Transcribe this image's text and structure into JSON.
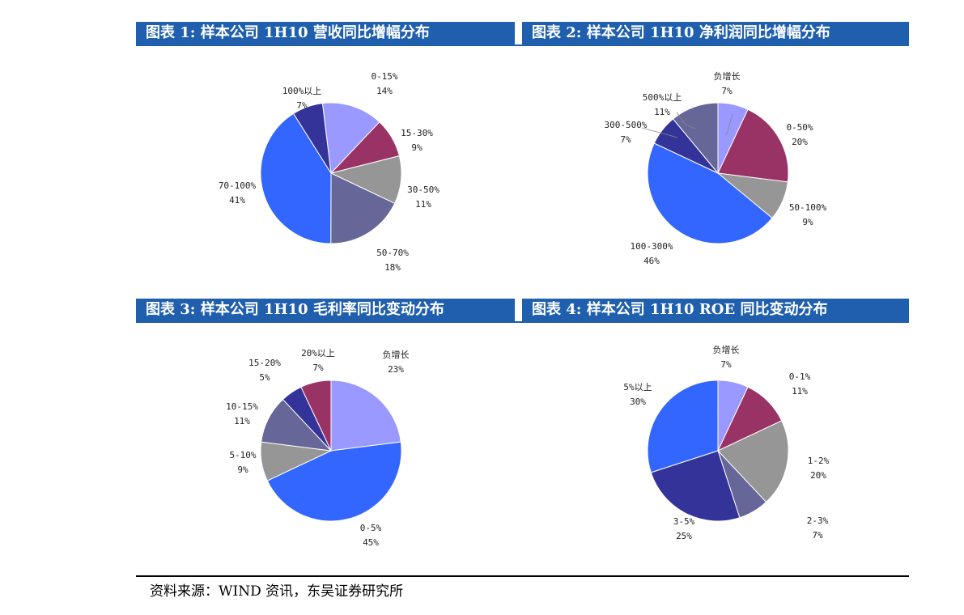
{
  "source": "资料来源：WIND 资讯，东吴证券研究所",
  "chart_data": [
    {
      "type": "pie",
      "title": "图表 1: 样本公司 1H10 营收同比增幅分布",
      "slices": [
        {
          "label": "0-15%",
          "pct": "14%",
          "value": 14,
          "color": "#9999ff"
        },
        {
          "label": "15-30%",
          "pct": "9%",
          "value": 9,
          "color": "#993366"
        },
        {
          "label": "30-50%",
          "pct": "11%",
          "value": 11,
          "color": "#969696"
        },
        {
          "label": "50-70%",
          "pct": "18%",
          "value": 18,
          "color": "#666699"
        },
        {
          "label": "70-100%",
          "pct": "41%",
          "value": 41,
          "color": "#3366ff"
        },
        {
          "label": "100%以上",
          "pct": "7%",
          "value": 7,
          "color": "#333399"
        }
      ]
    },
    {
      "type": "pie",
      "title": "图表 2: 样本公司 1H10 净利润同比增幅分布",
      "slices": [
        {
          "label": "负增长",
          "pct": "7%",
          "value": 7,
          "color": "#9999ff"
        },
        {
          "label": "0-50%",
          "pct": "20%",
          "value": 20,
          "color": "#993366"
        },
        {
          "label": "50-100%",
          "pct": "9%",
          "value": 9,
          "color": "#969696"
        },
        {
          "label": "100-300%",
          "pct": "46%",
          "value": 46,
          "color": "#3366ff"
        },
        {
          "label": "300-500%",
          "pct": "7%",
          "value": 7,
          "color": "#333399"
        },
        {
          "label": "500%以上",
          "pct": "11%",
          "value": 11,
          "color": "#666699"
        }
      ]
    },
    {
      "type": "pie",
      "title": "图表 3: 样本公司 1H10 毛利率同比变动分布",
      "slices": [
        {
          "label": "负增长",
          "pct": "23%",
          "value": 23,
          "color": "#9999ff"
        },
        {
          "label": "0-5%",
          "pct": "45%",
          "value": 45,
          "color": "#3366ff"
        },
        {
          "label": "5-10%",
          "pct": "9%",
          "value": 9,
          "color": "#969696"
        },
        {
          "label": "10-15%",
          "pct": "11%",
          "value": 11,
          "color": "#666699"
        },
        {
          "label": "15-20%",
          "pct": "5%",
          "value": 5,
          "color": "#333399"
        },
        {
          "label": "20%以上",
          "pct": "7%",
          "value": 7,
          "color": "#993366"
        }
      ]
    },
    {
      "type": "pie",
      "title": "图表 4: 样本公司 1H10 ROE 同比变动分布",
      "slices": [
        {
          "label": "负增长",
          "pct": "7%",
          "value": 7,
          "color": "#9999ff"
        },
        {
          "label": "0-1%",
          "pct": "11%",
          "value": 11,
          "color": "#993366"
        },
        {
          "label": "1-2%",
          "pct": "20%",
          "value": 20,
          "color": "#969696"
        },
        {
          "label": "2-3%",
          "pct": "7%",
          "value": 7,
          "color": "#666699"
        },
        {
          "label": "3-5%",
          "pct": "25%",
          "value": 25,
          "color": "#333399"
        },
        {
          "label": "5%以上",
          "pct": "30%",
          "value": 30,
          "color": "#3366ff"
        }
      ]
    }
  ]
}
